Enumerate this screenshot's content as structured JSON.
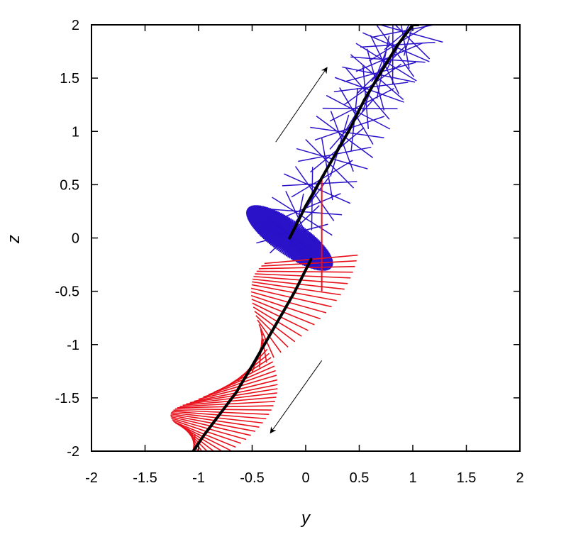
{
  "chart_data": {
    "type": "line",
    "xlabel": "y",
    "ylabel": "z",
    "xlim": [
      -2,
      2
    ],
    "ylim": [
      -2,
      2
    ],
    "xticks": [
      -2,
      -1.5,
      -1,
      -0.5,
      0,
      0.5,
      1,
      1.5,
      2
    ],
    "yticks": [
      -2,
      -1.5,
      -1,
      -0.5,
      0,
      0.5,
      1,
      1.5,
      2
    ],
    "xtick_labels": [
      "-2",
      "-1.5",
      "-1",
      "-0.5",
      "0",
      "0.5",
      "1",
      "1.5",
      "2"
    ],
    "ytick_labels": [
      "-2",
      "-1.5",
      "-1",
      "-0.5",
      "0",
      "0.5",
      "1",
      "1.5",
      "2"
    ],
    "grid": false,
    "series": [
      {
        "role": "trajectory-upper",
        "color": "#000000",
        "x": [
          -0.15,
          0.0,
          0.2,
          0.4,
          0.55,
          0.7,
          0.85,
          1.0,
          1.05
        ],
        "y": [
          0.0,
          0.3,
          0.65,
          1.0,
          1.3,
          1.55,
          1.8,
          2.0,
          2.0
        ]
      },
      {
        "role": "trajectory-lower",
        "color": "#000000",
        "x": [
          0.05,
          -0.1,
          -0.3,
          -0.5,
          -0.65,
          -0.8,
          -0.95,
          -1.05
        ],
        "y": [
          -0.2,
          -0.5,
          -0.85,
          -1.2,
          -1.45,
          -1.65,
          -1.85,
          -2.0
        ]
      }
    ],
    "blue_needles": {
      "color": "#2a12c8",
      "trajectory_x": [
        -0.15,
        0.05,
        0.25,
        0.45,
        0.6,
        0.72,
        0.85,
        1.0
      ],
      "trajectory_y": [
        0.0,
        0.35,
        0.75,
        1.1,
        1.4,
        1.6,
        1.8,
        2.0
      ],
      "needle_length": 0.35,
      "count": 60
    },
    "blue_disk": {
      "color": "#2a12c8",
      "center_x": -0.15,
      "center_y": 0.0,
      "semi_major": 0.48,
      "semi_minor": 0.16,
      "rotation_deg": -35,
      "count": 80
    },
    "red_needles": {
      "color": "#e8101a",
      "trajectory_x": [
        0.05,
        -0.1,
        -0.3,
        -0.5,
        -0.65,
        -0.8,
        -0.95,
        -1.05
      ],
      "trajectory_y": [
        -0.2,
        -0.5,
        -0.85,
        -1.2,
        -1.45,
        -1.65,
        -1.85,
        -2.0
      ],
      "needle_length": 0.45,
      "count": 55
    },
    "red_vertical_bar": {
      "color": "#e8101a",
      "x": 0.15,
      "y_from": -0.5,
      "y_to": 0.55
    },
    "annotations": [
      {
        "type": "arrow",
        "from": [
          -0.28,
          0.9
        ],
        "to": [
          0.2,
          1.6
        ]
      },
      {
        "type": "arrow",
        "from": [
          0.15,
          -1.15
        ],
        "to": [
          -0.33,
          -1.83
        ]
      }
    ]
  }
}
